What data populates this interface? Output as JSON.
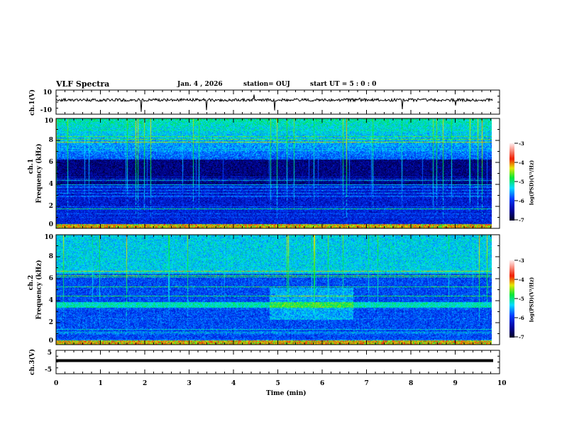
{
  "header": {
    "title": "VLF Spectra",
    "date": "Jan. 4 , 2026",
    "station": "station= OUJ",
    "start": "start  UT =   5 : 0  : 0"
  },
  "chart_data": {
    "type": "heatmap",
    "x": {
      "label": "Time (min)",
      "range": [
        0,
        10
      ],
      "ticks": [
        "0",
        "1",
        "2",
        "3",
        "4",
        "5",
        "6",
        "7",
        "8",
        "9",
        "10"
      ]
    },
    "panels": [
      {
        "name": "ch.1(V)",
        "type": "line",
        "ylim": [
          -10,
          10
        ],
        "ticks": [
          "10",
          "-10"
        ]
      },
      {
        "name": "ch.1",
        "ylabel": "Frequency (kHz)",
        "type": "heatmap",
        "ylim": [
          0,
          10
        ],
        "ticks": [
          "0",
          "2",
          "4",
          "6",
          "8",
          "10"
        ],
        "colorbar": {
          "label": "log(PSD)(V²/Hz)",
          "range": [
            -7,
            -3
          ],
          "ticks": [
            "-3",
            "-4",
            "-5",
            "-6",
            "-7"
          ]
        }
      },
      {
        "name": "ch.2",
        "ylabel": "Frequency (kHz)",
        "type": "heatmap",
        "ylim": [
          0,
          10
        ],
        "ticks": [
          "0",
          "2",
          "4",
          "6",
          "8",
          "10"
        ],
        "colorbar": {
          "label": "log(PSD)(V²/Hz)",
          "range": [
            -7,
            -3
          ],
          "ticks": [
            "-3",
            "-4",
            "-5",
            "-6",
            "-7"
          ]
        }
      },
      {
        "name": "ch.3(V)",
        "type": "line",
        "ylim": [
          -5,
          5
        ],
        "ticks": [
          "5",
          "-5"
        ],
        "constant_value": -1.2
      }
    ],
    "data_end_min": 9.85
  }
}
